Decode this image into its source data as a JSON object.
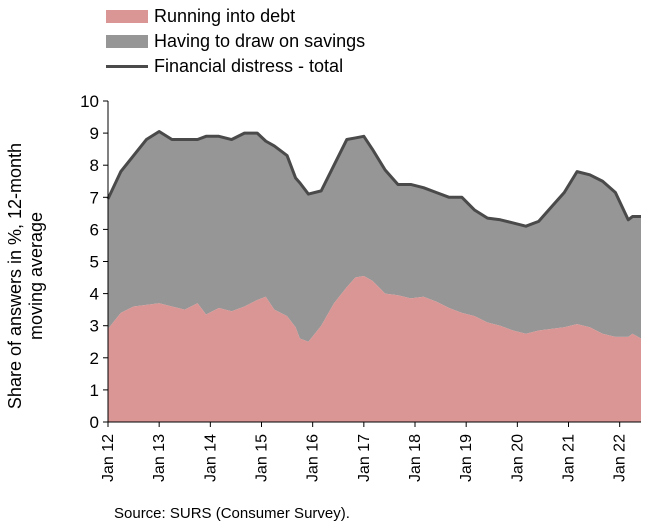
{
  "chart_data": {
    "type": "area",
    "title": "",
    "xlabel": "",
    "ylabel": "Share of answers in %, 12-month moving average",
    "ylim": [
      0,
      10
    ],
    "yticks": [
      "0",
      "1",
      "2",
      "3",
      "4",
      "5",
      "6",
      "7",
      "8",
      "9",
      "10"
    ],
    "x_tick_labels": [
      "Jan 12",
      "Jan 13",
      "Jan 14",
      "Jan 15",
      "Jan 16",
      "Jan 17",
      "Jan 18",
      "Jan 19",
      "Jan 20",
      "Jan 21",
      "Jan 22"
    ],
    "x_start": "2012-01",
    "x_end": "2022-06",
    "grid": false,
    "legend_position": "top-left",
    "colors": {
      "debt": "#d99694",
      "savings": "#969696",
      "total_line": "#4a4a4a"
    },
    "series": [
      {
        "name": "Running into debt",
        "kind": "stacked-area",
        "points": [
          [
            "2012-01",
            2.9
          ],
          [
            "2012-04",
            3.4
          ],
          [
            "2012-07",
            3.6
          ],
          [
            "2012-10",
            3.65
          ],
          [
            "2013-01",
            3.7
          ],
          [
            "2013-04",
            3.6
          ],
          [
            "2013-07",
            3.5
          ],
          [
            "2013-10",
            3.7
          ],
          [
            "2013-12",
            3.35
          ],
          [
            "2014-03",
            3.55
          ],
          [
            "2014-06",
            3.45
          ],
          [
            "2014-09",
            3.6
          ],
          [
            "2014-12",
            3.8
          ],
          [
            "2015-02",
            3.9
          ],
          [
            "2015-04",
            3.5
          ],
          [
            "2015-07",
            3.3
          ],
          [
            "2015-09",
            2.95
          ],
          [
            "2015-10",
            2.6
          ],
          [
            "2015-12",
            2.5
          ],
          [
            "2016-03",
            3.0
          ],
          [
            "2016-06",
            3.7
          ],
          [
            "2016-09",
            4.2
          ],
          [
            "2016-11",
            4.5
          ],
          [
            "2017-01",
            4.55
          ],
          [
            "2017-03",
            4.4
          ],
          [
            "2017-06",
            4.0
          ],
          [
            "2017-09",
            3.95
          ],
          [
            "2017-12",
            3.85
          ],
          [
            "2018-03",
            3.9
          ],
          [
            "2018-06",
            3.75
          ],
          [
            "2018-09",
            3.55
          ],
          [
            "2018-12",
            3.4
          ],
          [
            "2019-03",
            3.3
          ],
          [
            "2019-06",
            3.1
          ],
          [
            "2019-09",
            3.0
          ],
          [
            "2019-12",
            2.85
          ],
          [
            "2020-03",
            2.75
          ],
          [
            "2020-06",
            2.85
          ],
          [
            "2020-09",
            2.9
          ],
          [
            "2020-12",
            2.95
          ],
          [
            "2021-03",
            3.05
          ],
          [
            "2021-06",
            2.95
          ],
          [
            "2021-09",
            2.75
          ],
          [
            "2021-12",
            2.65
          ],
          [
            "2022-03",
            2.65
          ],
          [
            "2022-04",
            2.75
          ],
          [
            "2022-06",
            2.6
          ]
        ]
      },
      {
        "name": "Having to draw on savings",
        "kind": "stacked-area",
        "points": [
          [
            "2012-01",
            4.05
          ],
          [
            "2012-04",
            4.4
          ],
          [
            "2012-07",
            4.7
          ],
          [
            "2012-10",
            5.15
          ],
          [
            "2013-01",
            5.35
          ],
          [
            "2013-04",
            5.2
          ],
          [
            "2013-07",
            5.3
          ],
          [
            "2013-10",
            5.1
          ],
          [
            "2013-12",
            5.55
          ],
          [
            "2014-03",
            5.35
          ],
          [
            "2014-06",
            5.35
          ],
          [
            "2014-09",
            5.4
          ],
          [
            "2014-12",
            5.2
          ],
          [
            "2015-02",
            4.85
          ],
          [
            "2015-04",
            5.1
          ],
          [
            "2015-07",
            5.0
          ],
          [
            "2015-09",
            4.65
          ],
          [
            "2015-10",
            4.85
          ],
          [
            "2015-12",
            4.6
          ],
          [
            "2016-03",
            4.2
          ],
          [
            "2016-06",
            4.3
          ],
          [
            "2016-09",
            4.6
          ],
          [
            "2016-11",
            4.35
          ],
          [
            "2017-01",
            4.35
          ],
          [
            "2017-03",
            4.1
          ],
          [
            "2017-06",
            3.85
          ],
          [
            "2017-09",
            3.45
          ],
          [
            "2017-12",
            3.55
          ],
          [
            "2018-03",
            3.4
          ],
          [
            "2018-06",
            3.4
          ],
          [
            "2018-09",
            3.45
          ],
          [
            "2018-12",
            3.6
          ],
          [
            "2019-03",
            3.3
          ],
          [
            "2019-06",
            3.25
          ],
          [
            "2019-09",
            3.3
          ],
          [
            "2019-12",
            3.35
          ],
          [
            "2020-03",
            3.35
          ],
          [
            "2020-06",
            3.4
          ],
          [
            "2020-09",
            3.8
          ],
          [
            "2020-12",
            4.2
          ],
          [
            "2021-03",
            4.75
          ],
          [
            "2021-06",
            4.75
          ],
          [
            "2021-09",
            4.75
          ],
          [
            "2021-12",
            4.5
          ],
          [
            "2022-03",
            3.65
          ],
          [
            "2022-04",
            3.65
          ],
          [
            "2022-06",
            3.8
          ]
        ]
      },
      {
        "name": "Financial distress - total",
        "kind": "line",
        "points": [
          [
            "2012-01",
            6.95
          ],
          [
            "2012-04",
            7.8
          ],
          [
            "2012-07",
            8.3
          ],
          [
            "2012-10",
            8.8
          ],
          [
            "2013-01",
            9.05
          ],
          [
            "2013-04",
            8.8
          ],
          [
            "2013-07",
            8.8
          ],
          [
            "2013-10",
            8.8
          ],
          [
            "2013-12",
            8.9
          ],
          [
            "2014-03",
            8.9
          ],
          [
            "2014-06",
            8.8
          ],
          [
            "2014-09",
            9.0
          ],
          [
            "2014-12",
            9.0
          ],
          [
            "2015-02",
            8.75
          ],
          [
            "2015-04",
            8.6
          ],
          [
            "2015-07",
            8.3
          ],
          [
            "2015-09",
            7.6
          ],
          [
            "2015-10",
            7.45
          ],
          [
            "2015-12",
            7.1
          ],
          [
            "2016-03",
            7.2
          ],
          [
            "2016-06",
            8.0
          ],
          [
            "2016-09",
            8.8
          ],
          [
            "2016-11",
            8.85
          ],
          [
            "2017-01",
            8.9
          ],
          [
            "2017-03",
            8.5
          ],
          [
            "2017-06",
            7.85
          ],
          [
            "2017-09",
            7.4
          ],
          [
            "2017-12",
            7.4
          ],
          [
            "2018-03",
            7.3
          ],
          [
            "2018-06",
            7.15
          ],
          [
            "2018-09",
            7.0
          ],
          [
            "2018-12",
            7.0
          ],
          [
            "2019-03",
            6.6
          ],
          [
            "2019-06",
            6.35
          ],
          [
            "2019-09",
            6.3
          ],
          [
            "2019-12",
            6.2
          ],
          [
            "2020-03",
            6.1
          ],
          [
            "2020-06",
            6.25
          ],
          [
            "2020-09",
            6.7
          ],
          [
            "2020-12",
            7.15
          ],
          [
            "2021-03",
            7.8
          ],
          [
            "2021-06",
            7.7
          ],
          [
            "2021-09",
            7.5
          ],
          [
            "2021-12",
            7.15
          ],
          [
            "2022-03",
            6.3
          ],
          [
            "2022-04",
            6.4
          ],
          [
            "2022-06",
            6.4
          ]
        ]
      }
    ]
  },
  "source": "Source: SURS (Consumer Survey)."
}
